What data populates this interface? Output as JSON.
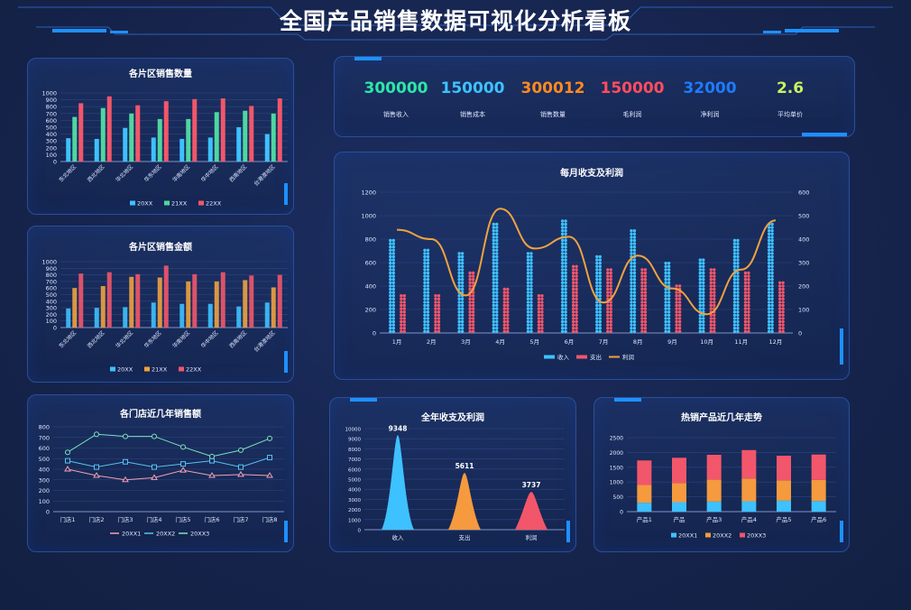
{
  "title": "全国产品销售数据可视化分析看板",
  "kpis": [
    {
      "value": "300000",
      "label": "销售收入",
      "color": "#2ee6a8"
    },
    {
      "value": "150000",
      "label": "销售成本",
      "color": "#3ec1ff"
    },
    {
      "value": "300012",
      "label": "销售数量",
      "color": "#ff8a1f"
    },
    {
      "value": "150000",
      "label": "毛利润",
      "color": "#ff4d5e"
    },
    {
      "value": "32000",
      "label": "净利润",
      "color": "#1f7bff"
    },
    {
      "value": "2.6",
      "label": "平均单价",
      "color": "#c8f25e"
    }
  ],
  "chart_data": [
    {
      "id": "region-qty",
      "type": "bar",
      "title": "各片区销售数量",
      "categories": [
        "东北地区",
        "西北地区",
        "华北地区",
        "华东地区",
        "华南地区",
        "华中地区",
        "西南地区",
        "台港澳地区"
      ],
      "series": [
        {
          "name": "20XX",
          "color": "#3ec1ff",
          "values": [
            340,
            330,
            490,
            350,
            330,
            350,
            500,
            400
          ]
        },
        {
          "name": "21XX",
          "color": "#4fd6a0",
          "values": [
            650,
            780,
            700,
            620,
            620,
            720,
            740,
            700
          ]
        },
        {
          "name": "22XX",
          "color": "#f2566a",
          "values": [
            850,
            950,
            820,
            880,
            910,
            920,
            810,
            920
          ]
        }
      ],
      "ylim": [
        0,
        1000
      ],
      "yticks": [
        0,
        100,
        200,
        300,
        400,
        500,
        600,
        700,
        800,
        900,
        1000
      ]
    },
    {
      "id": "region-amount",
      "type": "bar",
      "title": "各片区销售金额",
      "categories": [
        "东北地区",
        "西北地区",
        "华北地区",
        "华东地区",
        "华南地区",
        "华中地区",
        "西南地区",
        "台港澳地区"
      ],
      "series": [
        {
          "name": "20XX",
          "color": "#3ec1ff",
          "values": [
            290,
            300,
            310,
            380,
            360,
            360,
            320,
            380
          ]
        },
        {
          "name": "21XX",
          "color": "#f0a23f",
          "values": [
            600,
            630,
            770,
            760,
            700,
            700,
            720,
            610
          ]
        },
        {
          "name": "22XX",
          "color": "#f2566a",
          "values": [
            820,
            840,
            810,
            940,
            810,
            840,
            790,
            800
          ]
        }
      ],
      "ylim": [
        0,
        1000
      ],
      "yticks": [
        0,
        100,
        200,
        300,
        400,
        500,
        600,
        700,
        800,
        900,
        1000
      ]
    },
    {
      "id": "store-sales",
      "type": "line",
      "title": "各门店近几年销售额",
      "categories": [
        "门店1",
        "门店2",
        "门店3",
        "门店4",
        "门店5",
        "门店6",
        "门店7",
        "门店8"
      ],
      "series": [
        {
          "name": "20XX1",
          "color": "#f2a0b4",
          "marker": "triangle",
          "values": [
            400,
            340,
            300,
            320,
            390,
            340,
            350,
            340
          ]
        },
        {
          "name": "20XX2",
          "color": "#58c3f0",
          "marker": "square",
          "values": [
            480,
            420,
            470,
            420,
            450,
            480,
            420,
            510
          ]
        },
        {
          "name": "20XX3",
          "color": "#7be3c0",
          "marker": "circle",
          "values": [
            560,
            730,
            710,
            710,
            610,
            520,
            580,
            690
          ]
        }
      ],
      "ylim": [
        0,
        800
      ],
      "yticks": [
        0,
        100,
        200,
        300,
        400,
        500,
        600,
        700,
        800
      ]
    },
    {
      "id": "monthly",
      "type": "bar",
      "title": "每月收支及利润",
      "categories": [
        "1月",
        "2月",
        "3月",
        "4月",
        "5月",
        "6月",
        "7月",
        "8月",
        "9月",
        "10月",
        "11月",
        "12月"
      ],
      "series": [
        {
          "name": "收入",
          "color": "#3ec1ff",
          "axis": "left",
          "values": [
            800,
            730,
            680,
            930,
            700,
            980,
            660,
            880,
            600,
            640,
            800,
            930
          ]
        },
        {
          "name": "支出",
          "color": "#f2566a",
          "axis": "left",
          "values": [
            340,
            340,
            520,
            380,
            340,
            580,
            540,
            550,
            420,
            550,
            520,
            430
          ]
        },
        {
          "name": "利润",
          "color": "#f0a23f",
          "axis": "right",
          "type": "line",
          "values": [
            440,
            400,
            160,
            530,
            360,
            410,
            130,
            330,
            190,
            80,
            270,
            480
          ]
        }
      ],
      "ylim": [
        0,
        1200
      ],
      "yticks": [
        0,
        200,
        400,
        600,
        800,
        1000,
        1200
      ],
      "y2lim": [
        0,
        600
      ],
      "y2ticks": [
        0,
        100,
        200,
        300,
        400,
        500,
        600
      ]
    },
    {
      "id": "annual",
      "type": "bar",
      "title": "全年收支及利润",
      "categories": [
        "收入",
        "支出",
        "利润"
      ],
      "values": [
        9348,
        5611,
        3737
      ],
      "labels": [
        "9348",
        "5611",
        "3737"
      ],
      "colors": [
        "#3ec1ff",
        "#f59a3e",
        "#f2566a"
      ],
      "ylim": [
        0,
        10000
      ],
      "yticks": [
        0,
        1000,
        2000,
        3000,
        4000,
        5000,
        6000,
        7000,
        8000,
        9000,
        10000
      ]
    },
    {
      "id": "hot-products",
      "type": "bar",
      "stacked": true,
      "title": "热销产品近几年走势",
      "categories": [
        "产品1",
        "产品",
        "产品3",
        "产品4",
        "产品5",
        "产品6"
      ],
      "series": [
        {
          "name": "20XX1",
          "color": "#3ec1ff",
          "values": [
            300,
            320,
            340,
            350,
            370,
            360
          ]
        },
        {
          "name": "20XX2",
          "color": "#f59a3e",
          "values": [
            600,
            650,
            740,
            770,
            690,
            710
          ]
        },
        {
          "name": "20XX3",
          "color": "#f2566a",
          "values": [
            830,
            850,
            840,
            960,
            830,
            860
          ]
        }
      ],
      "ylim": [
        0,
        2500
      ],
      "yticks": [
        0,
        500,
        1000,
        1500,
        2000,
        2500
      ]
    }
  ]
}
